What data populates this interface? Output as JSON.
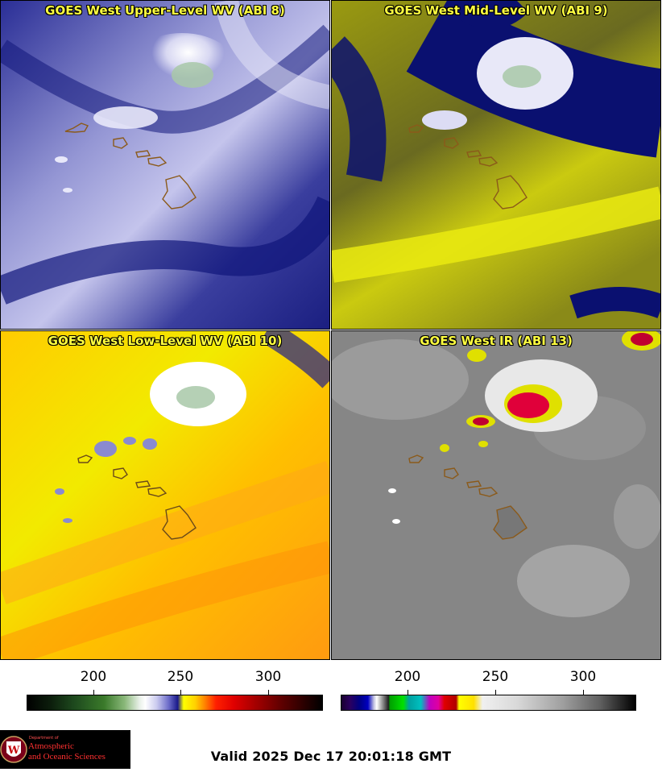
{
  "panels": [
    {
      "title": "GOES West Upper-Level WV (ABI 8)"
    },
    {
      "title": "GOES West Mid-Level WV (ABI 9)"
    },
    {
      "title": "GOES West Low-Level WV (ABI 10)"
    },
    {
      "title": "GOES West IR (ABI 13)"
    }
  ],
  "colorbars": {
    "wv": {
      "ticks": [
        "200",
        "250",
        "300"
      ]
    },
    "ir": {
      "ticks": [
        "200",
        "250",
        "300"
      ]
    }
  },
  "logo": {
    "line1": "Department of",
    "line2": "Atmospheric",
    "line3": "and Oceanic Sciences"
  },
  "valid_time": "Valid 2025 Dec 17 20:01:18 GMT",
  "colors": {
    "wv_navy": "#0a1070",
    "wv_lavender": "#c8c8ee",
    "wv_yellow": "#e6e600",
    "wv_orange": "#ffb000",
    "ir_gray": "#8a8a8a",
    "ir_red": "#e0003a",
    "title_yellow": "#ffff40",
    "coast_brown": "#8b5a1a"
  }
}
